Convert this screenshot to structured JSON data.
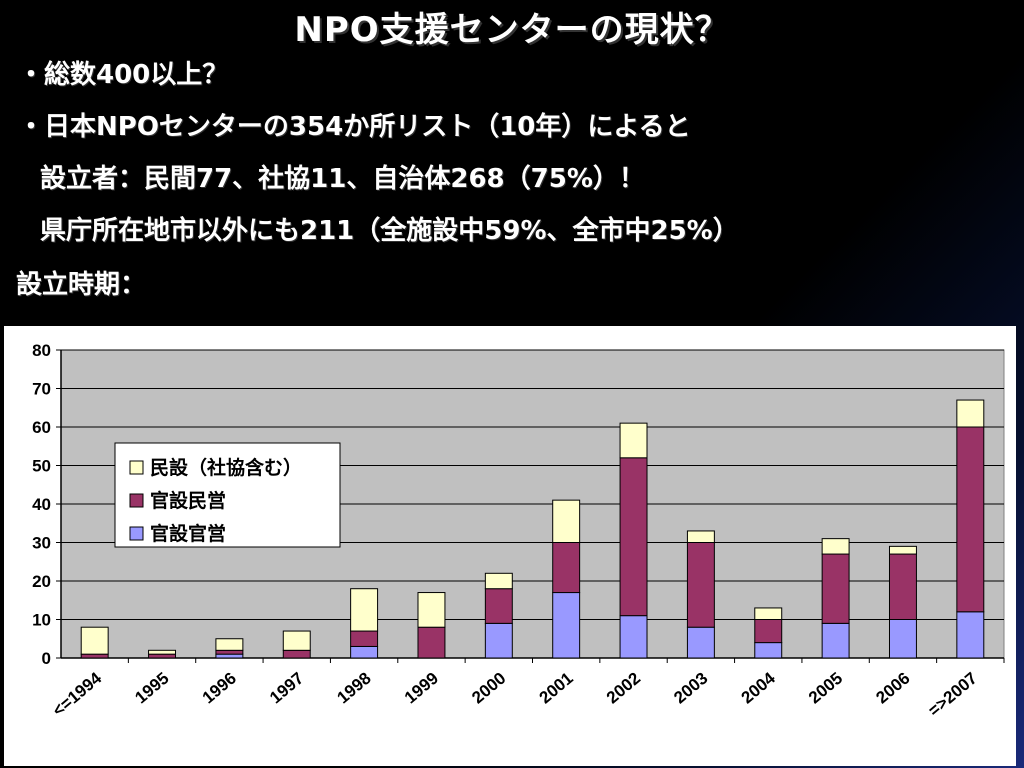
{
  "slide": {
    "title": "NPO支援センターの現状？",
    "bullets": [
      "・総数400以上？",
      "・日本NPOセンターの354か所リスト（10年）によると",
      "設立者：民間77、社協11、自治体268（75%）！",
      "県庁所在地市以外にも211（全施設中59%、全市中25%）",
      "設立時期："
    ]
  },
  "chart_data": {
    "type": "bar",
    "stacked": true,
    "categories": [
      "<=1994",
      "1995",
      "1996",
      "1997",
      "1998",
      "1999",
      "2000",
      "2001",
      "2002",
      "2003",
      "2004",
      "2005",
      "2006",
      "=>2007"
    ],
    "series": [
      {
        "name": "官設官営",
        "color": "#9999ff",
        "values": [
          0,
          0,
          1,
          0,
          3,
          0,
          9,
          17,
          11,
          8,
          4,
          9,
          10,
          12
        ]
      },
      {
        "name": "官設民営",
        "color": "#993366",
        "values": [
          1,
          1,
          1,
          2,
          4,
          8,
          9,
          13,
          41,
          22,
          6,
          18,
          17,
          48
        ]
      },
      {
        "name": "民設（社協含む）",
        "color": "#ffffcc",
        "values": [
          7,
          1,
          3,
          5,
          11,
          9,
          4,
          11,
          9,
          3,
          3,
          4,
          2,
          7
        ]
      }
    ],
    "yticks": [
      "0",
      "10",
      "20",
      "30",
      "40",
      "50",
      "60",
      "70",
      "80"
    ],
    "ylim": [
      0,
      80
    ],
    "grid": true,
    "legend_position": "upper-left",
    "legend_order": [
      "民設（社協含む）",
      "官設民営",
      "官設官営"
    ],
    "plot_background": "#c0c0c0"
  }
}
